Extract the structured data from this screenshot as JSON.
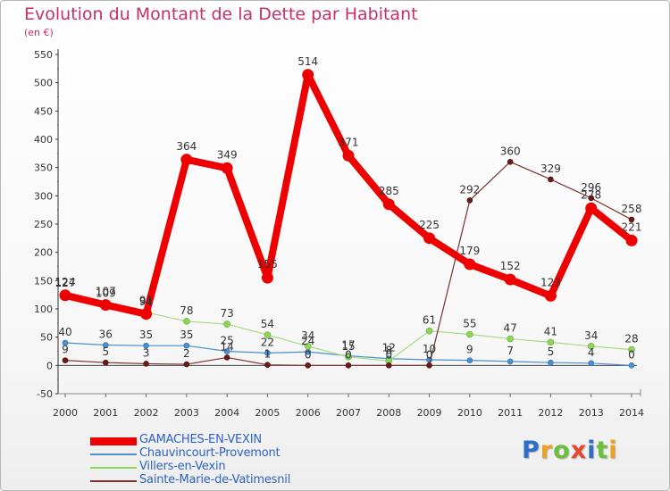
{
  "title": "Evolution du Montant de la Dette par Habitant",
  "subtitle": "(en €)",
  "logo": {
    "text": "Proxiti",
    "letter_colors": [
      "#2d6fc4",
      "#f0a020",
      "#6bbf3a",
      "#e8452e",
      "#2d6fc4",
      "#6bbf3a",
      "#f0a020"
    ]
  },
  "chart_data": {
    "type": "line",
    "x": [
      2000,
      2001,
      2002,
      2003,
      2004,
      2005,
      2006,
      2007,
      2008,
      2009,
      2010,
      2011,
      2012,
      2013,
      2014
    ],
    "ylim": [
      -50,
      550
    ],
    "yticks": [
      -50,
      0,
      50,
      100,
      150,
      200,
      250,
      300,
      350,
      400,
      450,
      500,
      550
    ],
    "grid": false,
    "legend_position": "bottom-left",
    "series": [
      {
        "name": "GAMACHES-EN-VEXIN",
        "color": "#ee0000",
        "values": [
          124,
          107,
          91,
          364,
          349,
          155,
          514,
          371,
          285,
          225,
          179,
          152,
          123,
          278,
          221
        ],
        "labels": [
          "124",
          "107",
          "91",
          "364",
          "349",
          "155",
          "514",
          "371",
          "285",
          "225",
          "179",
          "152",
          "123",
          "278",
          "221"
        ]
      },
      {
        "name": "Chauvincourt-Provemont",
        "color": "#4a8fd0",
        "values": [
          40,
          36,
          35,
          35,
          25,
          22,
          24,
          17,
          12,
          10,
          9,
          7,
          5,
          4,
          0
        ],
        "labels": [
          "40",
          "36",
          "35",
          "35",
          "25",
          "22",
          "24",
          "17",
          "12",
          "10",
          "9",
          "7",
          "5",
          "4",
          "0"
        ]
      },
      {
        "name": "Villers-en-Vexin",
        "color": "#8ed35a",
        "values": [
          127,
          109,
          94,
          78,
          73,
          54,
          34,
          15,
          8,
          61,
          55,
          47,
          41,
          34,
          28
        ],
        "labels": [
          "127",
          "109",
          "94",
          "78",
          "73",
          "54",
          "34",
          "15",
          "8",
          "61",
          "55",
          "47",
          "41",
          "34",
          "28"
        ]
      },
      {
        "name": "Sainte-Marie-de-Vatimesnil",
        "color": "#7a1e1e",
        "values": [
          9,
          5,
          3,
          2,
          14,
          1,
          0,
          0,
          0,
          0,
          292,
          360,
          329,
          296,
          258
        ],
        "labels": [
          "9",
          "5",
          "3",
          "2",
          "14",
          "1",
          "0",
          "0",
          "0",
          "0",
          "292",
          "360",
          "329",
          "296",
          "258"
        ]
      }
    ]
  }
}
